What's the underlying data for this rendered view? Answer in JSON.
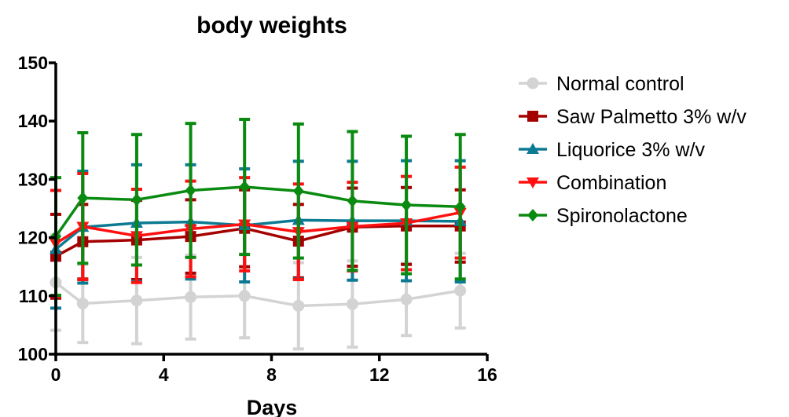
{
  "chart_data": {
    "type": "line",
    "title": "body weights",
    "xlabel": "Days",
    "ylabel": "",
    "xlim": [
      0,
      16
    ],
    "ylim": [
      100,
      150
    ],
    "xticks": [
      0,
      4,
      8,
      12,
      16
    ],
    "yticks": [
      100,
      110,
      120,
      130,
      140,
      150
    ],
    "x_tick_labels": [
      "0",
      "4",
      "8",
      "12",
      "16"
    ],
    "y_tick_labels": [
      "100",
      "110",
      "120",
      "130",
      "140",
      "150"
    ],
    "legend_position": "right",
    "grid": false,
    "error_bars": "upper and lower",
    "x": [
      0,
      1,
      3,
      5,
      7,
      9,
      11,
      13,
      15
    ],
    "series": [
      {
        "name": "Normal control",
        "color": "#d3d3d3",
        "marker": "circle",
        "values": [
          112.3,
          108.7,
          109.2,
          109.8,
          110.0,
          108.3,
          108.6,
          109.4,
          110.9
        ],
        "error": [
          8.2,
          6.7,
          7.4,
          7.2,
          7.2,
          7.4,
          7.4,
          6.2,
          6.4
        ]
      },
      {
        "name": "Saw Palmetto 3% w/v",
        "color": "#a50000",
        "marker": "square",
        "values": [
          116.8,
          119.3,
          119.6,
          120.2,
          121.6,
          119.4,
          121.8,
          122.0,
          122.0
        ],
        "error": [
          7.2,
          6.4,
          6.8,
          6.3,
          6.6,
          6.3,
          6.7,
          6.6,
          6.2
        ]
      },
      {
        "name": "Liquorice 3% w/v",
        "color": "#0c7a92",
        "marker": "triangle-up",
        "values": [
          118.0,
          121.8,
          122.5,
          122.7,
          122.1,
          123.0,
          122.9,
          122.9,
          122.8
        ],
        "error": [
          10.1,
          9.6,
          10.0,
          9.8,
          9.7,
          10.1,
          10.2,
          10.3,
          10.4
        ]
      },
      {
        "name": "Combination",
        "color": "#ff1010",
        "marker": "triangle-down",
        "values": [
          119.0,
          121.9,
          120.3,
          121.5,
          122.3,
          121.0,
          121.9,
          122.5,
          124.3
        ],
        "error": [
          9.1,
          9.1,
          8.0,
          8.2,
          8.0,
          8.2,
          7.6,
          8.0,
          7.8
        ]
      },
      {
        "name": "Spironolactone",
        "color": "#0a8a10",
        "marker": "diamond",
        "values": [
          120.2,
          126.8,
          126.5,
          128.1,
          128.7,
          128.0,
          126.3,
          125.6,
          125.3
        ],
        "error": [
          10.1,
          11.2,
          11.2,
          11.5,
          11.6,
          11.5,
          11.9,
          11.8,
          12.4
        ]
      }
    ]
  }
}
